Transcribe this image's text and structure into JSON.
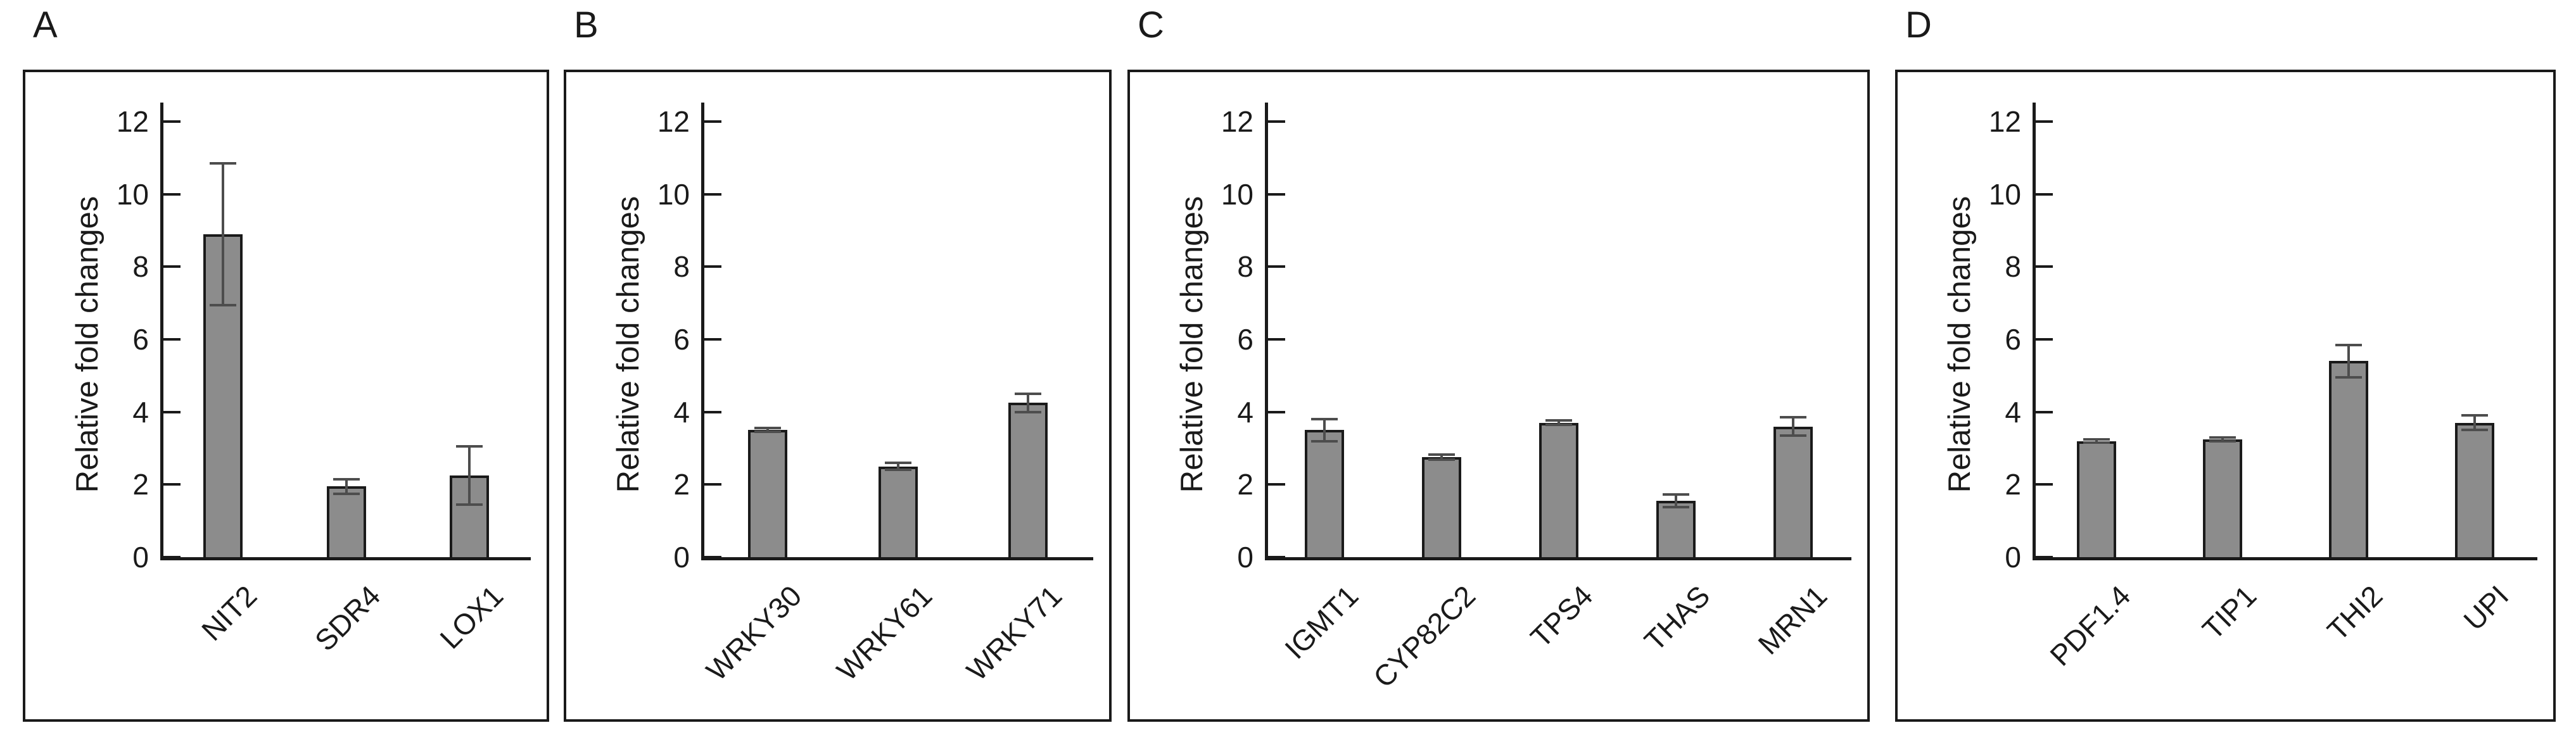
{
  "style": {
    "background": "#ffffff",
    "bar_fill": "#8c8c8c",
    "bar_border": "#1a1a1a",
    "error_bar_color": "#4d4d4d",
    "text_color": "#1a1a1a"
  },
  "chart_data": [
    {
      "panel": "A",
      "type": "bar",
      "title": "",
      "xlabel": "",
      "ylabel": "Relative fold changes",
      "ylim": [
        0,
        12
      ],
      "yticks": [
        0,
        2,
        4,
        6,
        8,
        10,
        12
      ],
      "grid": "off",
      "legend": "none",
      "categories": [
        "NIT2",
        "SDR4",
        "LOX1"
      ],
      "values": [
        8.9,
        1.95,
        2.25
      ],
      "errors": [
        1.95,
        0.2,
        0.8
      ]
    },
    {
      "panel": "B",
      "type": "bar",
      "title": "",
      "xlabel": "",
      "ylabel": "Relative fold changes",
      "ylim": [
        0,
        12
      ],
      "yticks": [
        0,
        2,
        4,
        6,
        8,
        10,
        12
      ],
      "grid": "off",
      "legend": "none",
      "categories": [
        "WRKY30",
        "WRKY61",
        "WRKY71"
      ],
      "values": [
        3.5,
        2.5,
        4.25
      ],
      "errors": [
        0.05,
        0.1,
        0.25
      ]
    },
    {
      "panel": "C",
      "type": "bar",
      "title": "",
      "xlabel": "",
      "ylabel": "Relative fold changes",
      "ylim": [
        0,
        12
      ],
      "yticks": [
        0,
        2,
        4,
        6,
        8,
        10,
        12
      ],
      "grid": "off",
      "legend": "none",
      "categories": [
        "IGMT1",
        "CYP82C2",
        "TPS4",
        "THAS",
        "MRN1"
      ],
      "values": [
        3.5,
        2.75,
        3.7,
        1.55,
        3.6
      ],
      "errors": [
        0.3,
        0.07,
        0.06,
        0.18,
        0.25
      ]
    },
    {
      "panel": "D",
      "type": "bar",
      "title": "",
      "xlabel": "",
      "ylabel": "Relative fold changes",
      "ylim": [
        0,
        12
      ],
      "yticks": [
        0,
        2,
        4,
        6,
        8,
        10,
        12
      ],
      "grid": "off",
      "legend": "none",
      "categories": [
        "PDF1.4",
        "TIP1",
        "THI2",
        "UPI"
      ],
      "values": [
        3.2,
        3.25,
        5.4,
        3.7
      ],
      "errors": [
        0.04,
        0.05,
        0.45,
        0.2
      ]
    }
  ]
}
